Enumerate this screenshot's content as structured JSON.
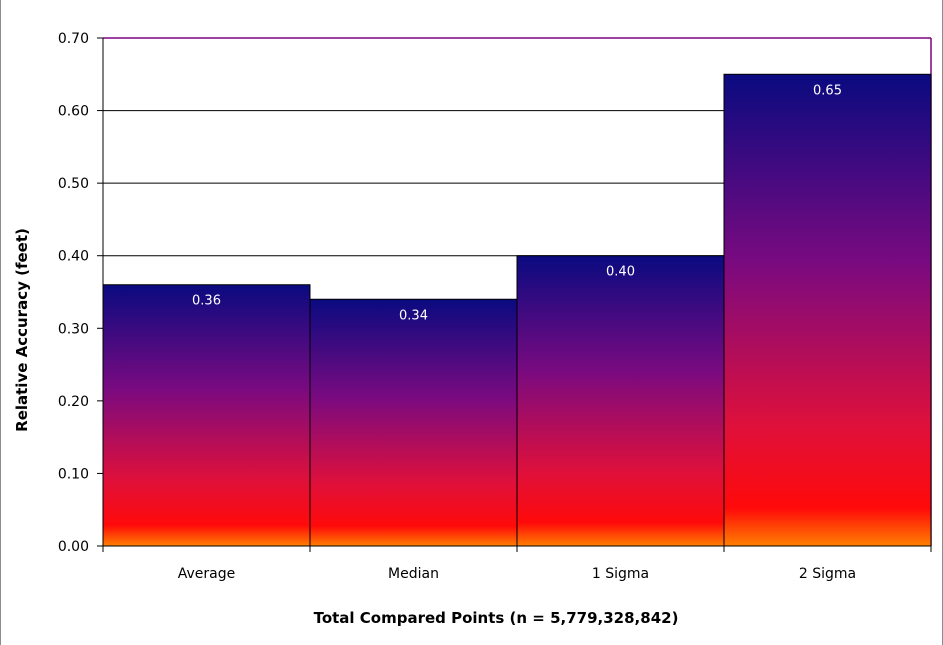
{
  "chart_data": {
    "type": "bar",
    "title": "",
    "xlabel": "Total Compared Points (n = 5,779,328,842)",
    "ylabel": "Relative Accuracy (feet)",
    "categories": [
      "Average",
      "Median",
      "1 Sigma",
      "2 Sigma"
    ],
    "values": [
      0.36,
      0.34,
      0.4,
      0.65
    ],
    "data_labels": [
      "0.36",
      "0.34",
      "0.40",
      "0.65"
    ],
    "ylim": [
      0,
      0.7
    ],
    "y_ticks": [
      "0.00",
      "0.10",
      "0.20",
      "0.30",
      "0.40",
      "0.50",
      "0.60",
      "0.70"
    ],
    "grid": true,
    "legend": "none",
    "colors": {
      "bar_gradient_top": "#0a0a80",
      "bar_gradient_mid": "#8a0a7a",
      "bar_gradient_low": "#ff0a0a",
      "bar_gradient_bottom": "#ff8000",
      "plot_border": "#800080",
      "grid": "#000000"
    }
  }
}
